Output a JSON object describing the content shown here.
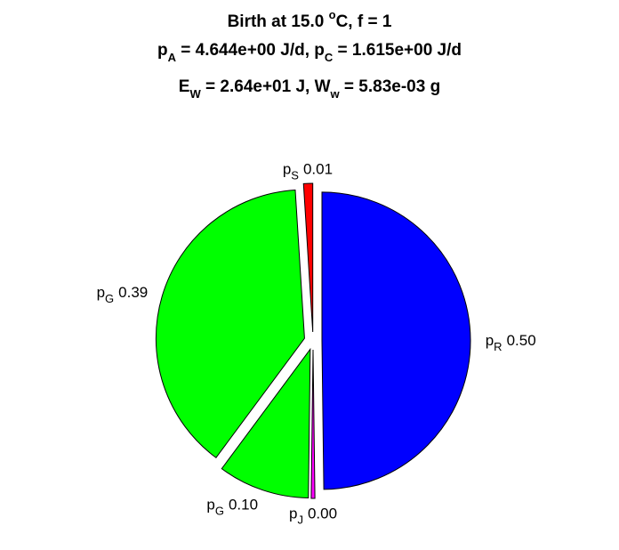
{
  "chart_data": {
    "type": "pie",
    "title": [
      [
        "Birth at 15.0 ",
        "o",
        "C, f = 1"
      ],
      [
        "p",
        "A",
        " = 4.644e+00 J/d, p",
        "C",
        " = 1.615e+00 J/d"
      ],
      [
        "E",
        "W",
        " = 2.64e+01 J, W",
        "w",
        " = 5.83e-03 g"
      ]
    ],
    "categories": [
      [
        "p",
        "S"
      ],
      [
        "p",
        "G"
      ],
      [
        "p",
        "G"
      ],
      [
        "p",
        "J"
      ],
      [
        "p",
        "R"
      ]
    ],
    "values": [
      0.01,
      0.39,
      0.1,
      0.004,
      0.5
    ],
    "value_labels": [
      "0.01",
      "0.39",
      "0.10",
      "0.00",
      "0.50"
    ],
    "colors": [
      "#ff0000",
      "#00ff00",
      "#00ff00",
      "#ff00ff",
      "#0000ff"
    ],
    "explode": true
  }
}
